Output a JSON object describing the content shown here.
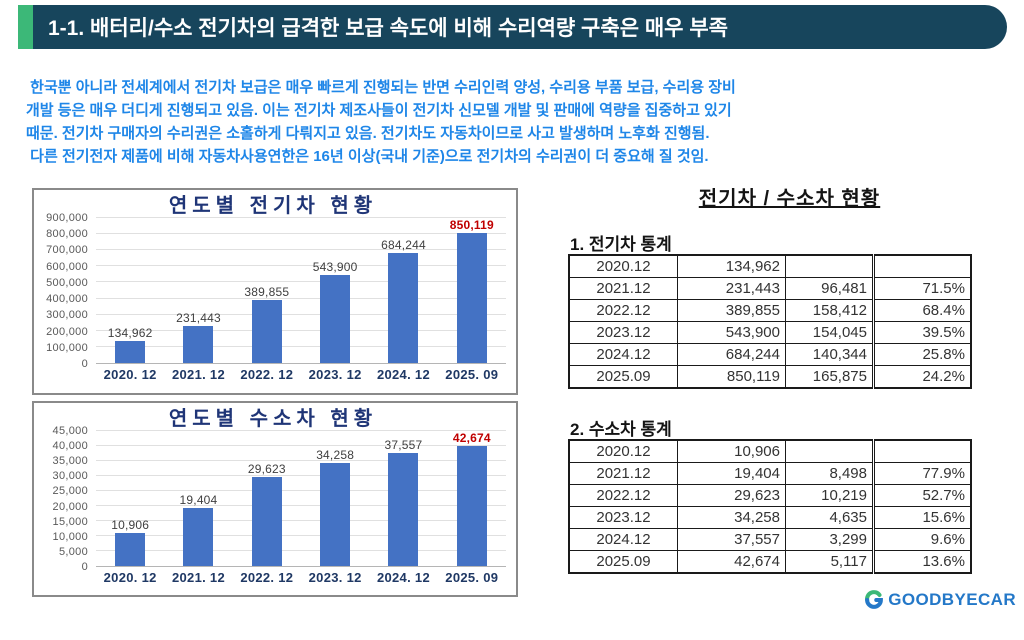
{
  "header": {
    "title": "1-1. 배터리/수소 전기차의 급격한 보급 속도에 비해 수리역량 구축은 매우 부족"
  },
  "intro": {
    "lines": [
      " 한국뿐 아니라 전세계에서 전기차 보급은 매우 빠르게 진행되는 반면 수리인력 양성, 수리용 부품 보급, 수리용 장비",
      "개발 등은 매우 더디게 진행되고 있음. 이는 전기차 제조사들이 전기차 신모델 개발 및 판매에 역량을 집중하고 있기",
      "때문. 전기차 구매자의 수리권은 소홀하게 다뤄지고 있음. 전기차도 자동차이므로 사고 발생하며 노후화 진행됨.",
      " 다른 전기전자 제품에 비해 자동차사용연한은 16년 이상(국내 기준)으로 전기차의 수리권이 더 중요해 질 것임."
    ]
  },
  "chart_data": [
    {
      "type": "bar",
      "title": "연도별 전기차 현황",
      "categories": [
        "2020. 12",
        "2021. 12",
        "2022. 12",
        "2023. 12",
        "2024. 12",
        "2025. 09"
      ],
      "values": [
        134962,
        231443,
        389855,
        543900,
        684244,
        850119
      ],
      "value_labels": [
        "134,962",
        "231,443",
        "389,855",
        "543,900",
        "684,244",
        "850,119"
      ],
      "ylim": [
        0,
        900000
      ],
      "ytick_step": 100000,
      "yticks_top_to_bottom": [
        "900,000",
        "800,000",
        "700,000",
        "600,000",
        "500,000",
        "400,000",
        "300,000",
        "200,000",
        "100,000",
        "0"
      ],
      "grid": true,
      "legend": "none",
      "bar_color": "#4472C4",
      "highlight_last": true,
      "highlight_color": "#C00000"
    },
    {
      "type": "bar",
      "title": "연도별 수소차 현황",
      "categories": [
        "2020. 12",
        "2021. 12",
        "2022. 12",
        "2023. 12",
        "2024. 12",
        "2025. 09"
      ],
      "values": [
        10906,
        19404,
        29623,
        34258,
        37557,
        42674
      ],
      "value_labels": [
        "10,906",
        "19,404",
        "29,623",
        "34,258",
        "37,557",
        "42,674"
      ],
      "ylim": [
        0,
        45000
      ],
      "ytick_step": 5000,
      "yticks_top_to_bottom": [
        "45,000",
        "40,000",
        "35,000",
        "30,000",
        "25,000",
        "20,000",
        "15,000",
        "10,000",
        "5,000",
        "0"
      ],
      "grid": true,
      "legend": "none",
      "bar_color": "#4472C4",
      "highlight_last": true,
      "highlight_color": "#C00000"
    }
  ],
  "right_panel": {
    "heading": "전기차 / 수소차 현황",
    "tables": [
      {
        "title": "1. 전기차 통계",
        "rows": [
          [
            "2020.12",
            "134,962",
            "",
            ""
          ],
          [
            "2021.12",
            "231,443",
            "96,481",
            "71.5%"
          ],
          [
            "2022.12",
            "389,855",
            "158,412",
            "68.4%"
          ],
          [
            "2023.12",
            "543,900",
            "154,045",
            "39.5%"
          ],
          [
            "2024.12",
            "684,244",
            "140,344",
            "25.8%"
          ],
          [
            "2025.09",
            "850,119",
            "165,875",
            "24.2%"
          ]
        ]
      },
      {
        "title": "2. 수소차 통계",
        "rows": [
          [
            "2020.12",
            "10,906",
            "",
            ""
          ],
          [
            "2021.12",
            "19,404",
            "8,498",
            "77.9%"
          ],
          [
            "2022.12",
            "29,623",
            "10,219",
            "52.7%"
          ],
          [
            "2023.12",
            "34,258",
            "4,635",
            "15.6%"
          ],
          [
            "2024.12",
            "37,557",
            "3,299",
            "9.6%"
          ],
          [
            "2025.09",
            "42,674",
            "5,117",
            "13.6%"
          ]
        ]
      }
    ]
  },
  "footer": {
    "logo_text": "GOODBYECAR"
  },
  "colors": {
    "header_bg": "#17455C",
    "header_accent": "#3CB878",
    "intro_text": "#1E86E8",
    "bar": "#4472C4",
    "highlight": "#C00000",
    "axis_label": "#595959",
    "category_label": "#1F3864",
    "chart_title": "#1F3577",
    "logo_blue": "#2478C8",
    "logo_green": "#3CB878"
  }
}
